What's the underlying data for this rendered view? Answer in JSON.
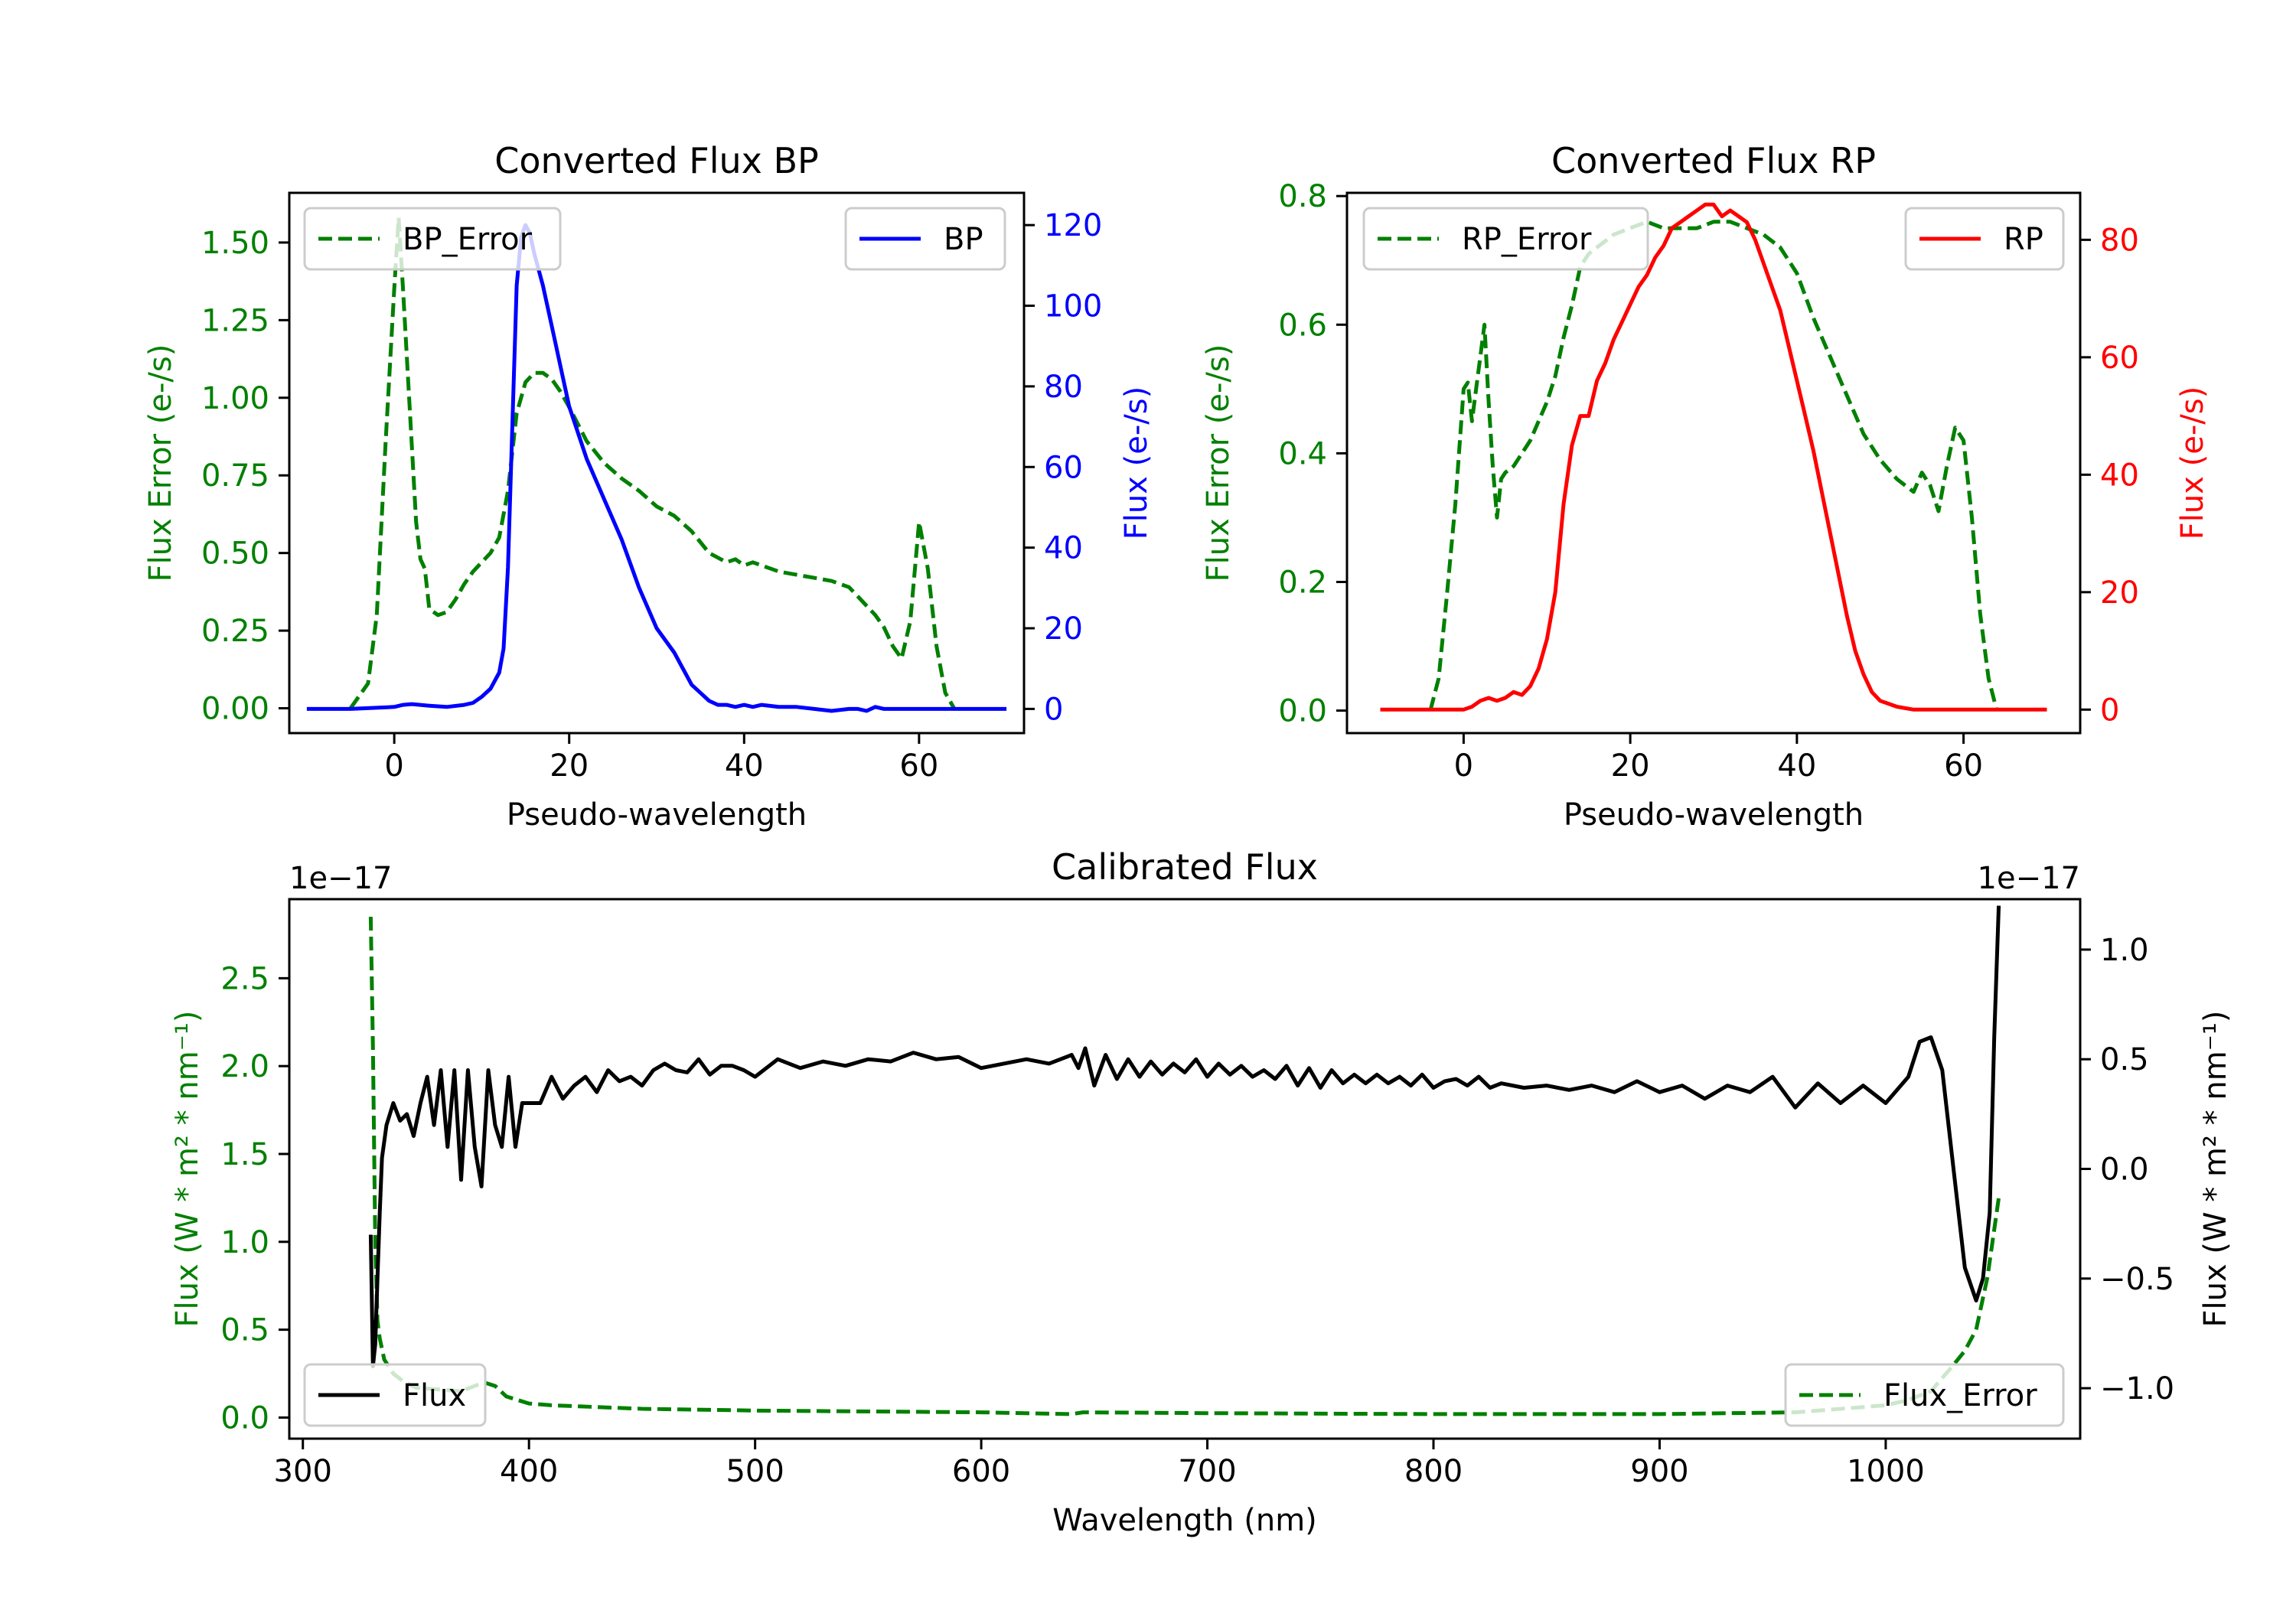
{
  "chart_data": [
    {
      "id": "bp",
      "type": "line",
      "title": "Converted Flux BP",
      "xlabel": "Pseudo-wavelength",
      "ylabel_left": "Flux Error (e-/s)",
      "ylabel_right": "Flux (e-/s)",
      "xlim": [
        -12,
        72
      ],
      "ylim_left": [
        -0.08,
        1.66
      ],
      "ylim_right": [
        -6,
        128
      ],
      "xticks": [
        0,
        20,
        40,
        60
      ],
      "yticks_left": [
        0.0,
        0.25,
        0.5,
        0.75,
        1.0,
        1.25,
        1.5
      ],
      "yticks_right": [
        0,
        20,
        40,
        60,
        80,
        100,
        120
      ],
      "legend_left": "BP_Error",
      "legend_right": "BP",
      "series": [
        {
          "name": "BP_Error",
          "axis": "left",
          "color": "#008000",
          "dash": true,
          "x": [
            -5,
            -3,
            -2,
            -1,
            0,
            0.5,
            1,
            2,
            2.5,
            3,
            3.5,
            4,
            5,
            6,
            7,
            8,
            9,
            10,
            11,
            12,
            13,
            14,
            15,
            16,
            17,
            18,
            19,
            20,
            22,
            24,
            26,
            28,
            30,
            32,
            34,
            36,
            38,
            39,
            40,
            41,
            42,
            44,
            46,
            48,
            50,
            52,
            53,
            55,
            56,
            57,
            58,
            59,
            60,
            61,
            62,
            63,
            64
          ],
          "y": [
            0,
            0.08,
            0.3,
            0.85,
            1.35,
            1.58,
            1.35,
            0.85,
            0.6,
            0.48,
            0.45,
            0.32,
            0.3,
            0.31,
            0.35,
            0.4,
            0.44,
            0.47,
            0.5,
            0.55,
            0.7,
            0.95,
            1.05,
            1.08,
            1.08,
            1.06,
            1.02,
            0.97,
            0.86,
            0.79,
            0.74,
            0.7,
            0.65,
            0.62,
            0.57,
            0.5,
            0.47,
            0.48,
            0.46,
            0.47,
            0.46,
            0.44,
            0.43,
            0.42,
            0.41,
            0.39,
            0.36,
            0.3,
            0.26,
            0.2,
            0.16,
            0.28,
            0.6,
            0.45,
            0.2,
            0.05,
            0
          ]
        },
        {
          "name": "BP",
          "axis": "right",
          "color": "#0000ff",
          "dash": false,
          "x": [
            -10,
            -5,
            0,
            1,
            2,
            4,
            6,
            8,
            9,
            10,
            11,
            12,
            12.5,
            13,
            13.5,
            14,
            14.5,
            15,
            15.5,
            16,
            17,
            18,
            19,
            20,
            22,
            24,
            26,
            28,
            30,
            32,
            33,
            34,
            35,
            36,
            37,
            38,
            39,
            40,
            41,
            42,
            44,
            46,
            48,
            50,
            52,
            53,
            54,
            55,
            56,
            58,
            60,
            62,
            64,
            66,
            70
          ],
          "y": [
            0,
            0,
            0.5,
            1,
            1.2,
            0.8,
            0.5,
            1,
            1.5,
            3,
            5,
            9,
            15,
            35,
            70,
            105,
            117,
            120,
            118,
            113,
            105,
            95,
            85,
            75,
            62,
            52,
            42,
            30,
            20,
            14,
            10,
            6,
            4,
            2,
            1,
            1,
            0.5,
            1,
            0.5,
            1,
            0.5,
            0.5,
            0,
            -0.5,
            0,
            0,
            -0.5,
            0.5,
            0,
            0,
            0,
            0,
            0,
            0,
            0
          ]
        }
      ]
    },
    {
      "id": "rp",
      "type": "line",
      "title": "Converted Flux RP",
      "xlabel": "Pseudo-wavelength",
      "ylabel_left": "Flux Error (e-/s)",
      "ylabel_right": "Flux (e-/s)",
      "xlim": [
        -14,
        74
      ],
      "ylim_left": [
        -0.035,
        0.805
      ],
      "ylim_right": [
        -4,
        88
      ],
      "xticks": [
        0,
        20,
        40,
        60
      ],
      "yticks_left": [
        0.0,
        0.2,
        0.4,
        0.6,
        0.8
      ],
      "yticks_right": [
        0,
        20,
        40,
        60,
        80
      ],
      "legend_left": "RP_Error",
      "legend_right": "RP",
      "series": [
        {
          "name": "RP_Error",
          "axis": "left",
          "color": "#008000",
          "dash": true,
          "x": [
            -4,
            -3,
            -2,
            -1,
            0,
            0.5,
            1,
            1.5,
            2,
            2.5,
            3,
            3.5,
            4,
            4.5,
            5,
            6,
            7,
            8,
            9,
            10,
            11,
            12,
            13,
            14,
            15,
            16,
            17,
            18,
            20,
            22,
            24,
            26,
            28,
            30,
            32,
            34,
            36,
            38,
            40,
            42,
            44,
            46,
            48,
            50,
            52,
            54,
            55,
            56,
            57,
            58,
            59,
            60,
            61,
            62,
            63,
            64
          ],
          "y": [
            0,
            0.05,
            0.18,
            0.32,
            0.5,
            0.51,
            0.45,
            0.5,
            0.55,
            0.6,
            0.48,
            0.38,
            0.3,
            0.36,
            0.37,
            0.38,
            0.4,
            0.42,
            0.45,
            0.48,
            0.52,
            0.58,
            0.63,
            0.69,
            0.71,
            0.72,
            0.73,
            0.74,
            0.75,
            0.76,
            0.75,
            0.75,
            0.75,
            0.76,
            0.76,
            0.75,
            0.74,
            0.72,
            0.68,
            0.61,
            0.55,
            0.49,
            0.43,
            0.39,
            0.36,
            0.34,
            0.37,
            0.35,
            0.31,
            0.38,
            0.44,
            0.42,
            0.3,
            0.15,
            0.05,
            0
          ]
        },
        {
          "name": "RP",
          "axis": "right",
          "color": "#ff0000",
          "dash": false,
          "x": [
            -10,
            -5,
            0,
            1,
            2,
            3,
            4,
            5,
            6,
            7,
            8,
            9,
            10,
            11,
            12,
            13,
            14,
            15,
            16,
            17,
            18,
            19,
            20,
            21,
            22,
            23,
            24,
            25,
            26,
            27,
            28,
            29,
            30,
            31,
            32,
            33,
            34,
            35,
            36,
            37,
            38,
            39,
            40,
            41,
            42,
            43,
            44,
            45,
            46,
            47,
            48,
            49,
            50,
            51,
            52,
            54,
            56,
            58,
            60,
            62,
            65,
            70
          ],
          "y": [
            0,
            0,
            0,
            0.5,
            1.5,
            2,
            1.5,
            2,
            3,
            2.5,
            4,
            7,
            12,
            20,
            35,
            45,
            50,
            50,
            56,
            59,
            63,
            66,
            69,
            72,
            74,
            77,
            79,
            82,
            83,
            84,
            85,
            86,
            86,
            84,
            85,
            84,
            83,
            80,
            76,
            72,
            68,
            62,
            56,
            50,
            44,
            37,
            30,
            23,
            16,
            10,
            6,
            3,
            1.5,
            1,
            0.5,
            0,
            0,
            0,
            0,
            0,
            0,
            0
          ]
        }
      ]
    },
    {
      "id": "calibrated",
      "type": "line",
      "title": "Calibrated Flux",
      "xlabel": "Wavelength (nm)",
      "ylabel_left": "Flux (W * m² * nm⁻¹)",
      "ylabel_right": "Flux (W * m² * nm⁻¹)",
      "offset_left": "1e−17",
      "offset_right": "1e−17",
      "xlim": [
        294,
        1086
      ],
      "ylim_left": [
        -0.12,
        2.95
      ],
      "ylim_right": [
        -1.23,
        1.23
      ],
      "xticks": [
        300,
        400,
        500,
        600,
        700,
        800,
        900,
        1000
      ],
      "yticks_left": [
        0.0,
        0.5,
        1.0,
        1.5,
        2.0,
        2.5
      ],
      "yticks_right": [
        -1.0,
        -0.5,
        0.0,
        0.5,
        1.0
      ],
      "yticklabels_right": [
        "−1.0",
        "−0.5",
        "0.0",
        "0.5",
        "1.0"
      ],
      "legend_left": "Flux",
      "legend_right": "Flux_Error",
      "series": [
        {
          "name": "Flux_Error",
          "axis": "left",
          "color": "#008000",
          "dash": true,
          "x": [
            330,
            331,
            332,
            333,
            334,
            336,
            340,
            345,
            350,
            360,
            370,
            380,
            385,
            390,
            400,
            410,
            450,
            500,
            600,
            640,
            645,
            700,
            800,
            900,
            960,
            990,
            1000,
            1010,
            1020,
            1030,
            1035,
            1040,
            1045,
            1050
          ],
          "y": [
            2.85,
            2.1,
            1.0,
            0.55,
            0.45,
            0.33,
            0.25,
            0.2,
            0.17,
            0.16,
            0.15,
            0.2,
            0.18,
            0.12,
            0.08,
            0.07,
            0.05,
            0.04,
            0.03,
            0.02,
            0.03,
            0.025,
            0.02,
            0.02,
            0.03,
            0.06,
            0.07,
            0.1,
            0.15,
            0.3,
            0.38,
            0.5,
            0.8,
            1.25
          ]
        },
        {
          "name": "Flux",
          "axis": "right",
          "color": "#000000",
          "dash": false,
          "x": [
            330,
            331,
            332,
            333,
            334,
            335,
            337,
            340,
            343,
            346,
            349,
            352,
            355,
            358,
            361,
            364,
            367,
            370,
            373,
            376,
            379,
            382,
            385,
            388,
            391,
            394,
            397,
            400,
            405,
            410,
            415,
            420,
            425,
            430,
            435,
            440,
            445,
            450,
            455,
            460,
            465,
            470,
            475,
            480,
            485,
            490,
            495,
            500,
            510,
            520,
            530,
            540,
            550,
            560,
            570,
            580,
            590,
            600,
            610,
            620,
            630,
            640,
            643,
            646,
            650,
            655,
            660,
            665,
            670,
            675,
            680,
            685,
            690,
            695,
            700,
            705,
            710,
            715,
            720,
            725,
            730,
            735,
            740,
            745,
            750,
            755,
            760,
            765,
            770,
            775,
            780,
            785,
            790,
            795,
            800,
            805,
            810,
            815,
            820,
            825,
            830,
            840,
            850,
            860,
            870,
            880,
            890,
            900,
            910,
            920,
            930,
            940,
            950,
            960,
            970,
            980,
            990,
            1000,
            1010,
            1015,
            1020,
            1025,
            1030,
            1035,
            1040,
            1043,
            1046,
            1048,
            1050
          ],
          "y": [
            -0.3,
            -0.9,
            -0.8,
            -0.5,
            -0.2,
            0.05,
            0.2,
            0.3,
            0.22,
            0.25,
            0.15,
            0.3,
            0.42,
            0.2,
            0.45,
            0.1,
            0.45,
            -0.05,
            0.45,
            0.1,
            -0.08,
            0.45,
            0.2,
            0.1,
            0.42,
            0.1,
            0.3,
            0.3,
            0.3,
            0.42,
            0.32,
            0.38,
            0.42,
            0.35,
            0.45,
            0.4,
            0.42,
            0.38,
            0.45,
            0.48,
            0.45,
            0.44,
            0.5,
            0.43,
            0.47,
            0.47,
            0.45,
            0.42,
            0.5,
            0.46,
            0.49,
            0.47,
            0.5,
            0.49,
            0.53,
            0.5,
            0.51,
            0.46,
            0.48,
            0.5,
            0.48,
            0.52,
            0.46,
            0.55,
            0.38,
            0.52,
            0.41,
            0.5,
            0.42,
            0.49,
            0.43,
            0.48,
            0.44,
            0.5,
            0.42,
            0.48,
            0.43,
            0.47,
            0.42,
            0.45,
            0.41,
            0.47,
            0.38,
            0.46,
            0.37,
            0.45,
            0.39,
            0.43,
            0.39,
            0.43,
            0.39,
            0.42,
            0.38,
            0.43,
            0.37,
            0.4,
            0.41,
            0.38,
            0.42,
            0.37,
            0.39,
            0.37,
            0.38,
            0.36,
            0.38,
            0.35,
            0.4,
            0.35,
            0.38,
            0.32,
            0.38,
            0.35,
            0.42,
            0.28,
            0.39,
            0.3,
            0.38,
            0.3,
            0.42,
            0.58,
            0.6,
            0.45,
            0.0,
            -0.45,
            -0.6,
            -0.5,
            -0.2,
            0.6,
            1.2
          ]
        }
      ]
    }
  ]
}
